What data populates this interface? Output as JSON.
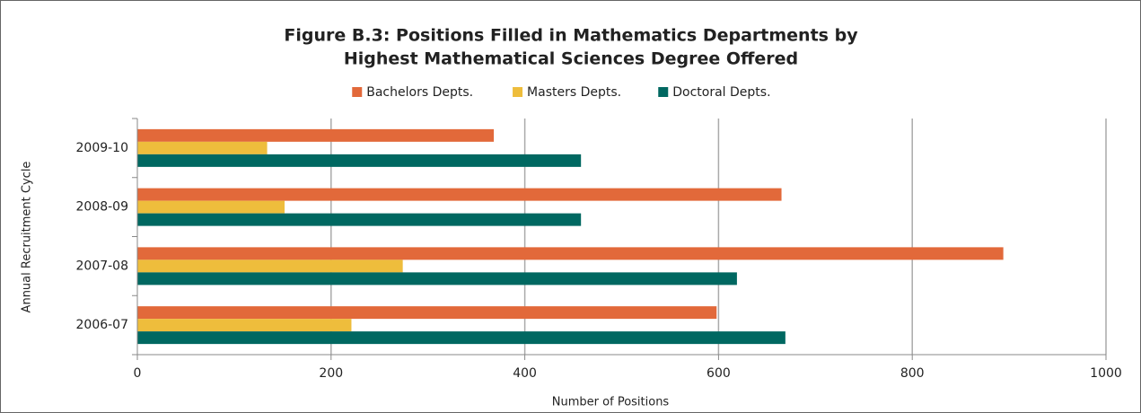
{
  "chart_data": {
    "type": "hbar",
    "title": [
      "Figure B.3: Positions Filled in Mathematics Departments by",
      "Highest Mathematical Sciences Degree Offered"
    ],
    "categories": [
      "2009-10",
      "2008-09",
      "2007-08",
      "2006-07"
    ],
    "series": [
      {
        "name": "Bachelors Depts.",
        "color": "#e2693a",
        "values": [
          368,
          665,
          894,
          598
        ]
      },
      {
        "name": "Masters Depts.",
        "color": "#eebd3c",
        "values": [
          134,
          152,
          274,
          221
        ]
      },
      {
        "name": "Doctoral Depts.",
        "color": "#006861",
        "values": [
          458,
          458,
          619,
          669
        ]
      }
    ],
    "xlim": [
      0,
      1000
    ],
    "xticks": [
      0,
      200,
      400,
      600,
      800,
      1000
    ],
    "x_label": "Number of Positions",
    "y_label": "Annual Recruitment Cycle",
    "grid": true,
    "legend": "top"
  }
}
